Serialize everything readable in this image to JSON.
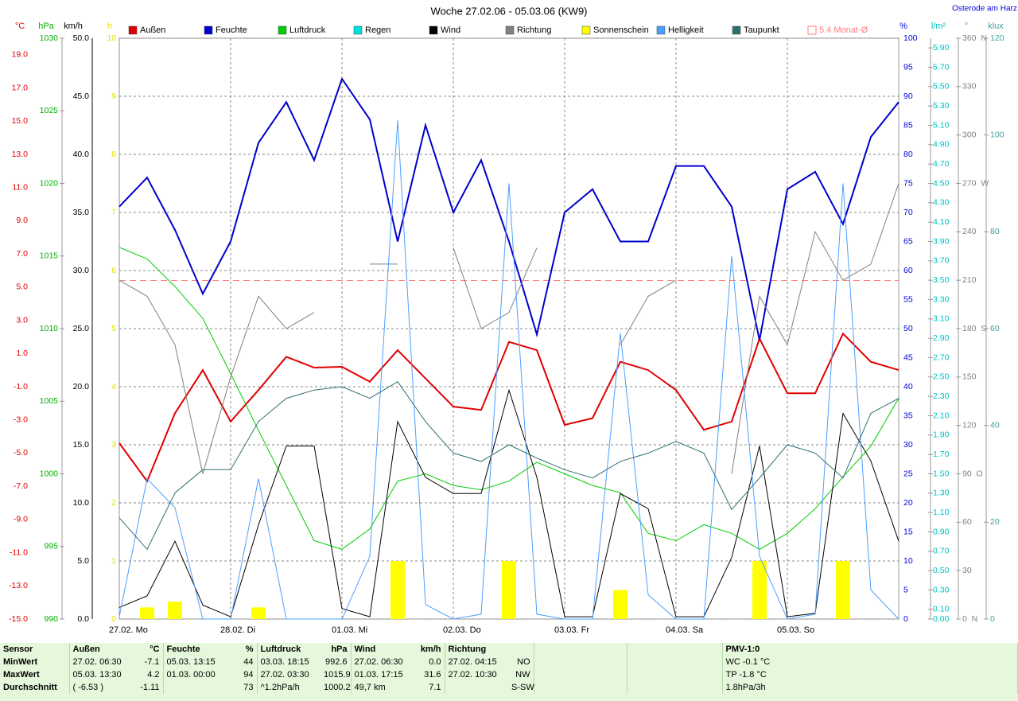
{
  "chart_data": {
    "type": "line",
    "title": "Woche 27.02.06 - 05.03.06 (KW9)",
    "location": "Osterode am Harz",
    "x": [
      0,
      6,
      12,
      18,
      24,
      30,
      36,
      42,
      48,
      54,
      60,
      66,
      72,
      78,
      84,
      90,
      96,
      102,
      108,
      114,
      120,
      126,
      132,
      138,
      144,
      150,
      156,
      162,
      168
    ],
    "xlim": [
      0,
      168
    ],
    "xticks": [
      {
        "value": 0,
        "label": "27.02. Mo"
      },
      {
        "value": 24,
        "label": "28.02. Di"
      },
      {
        "value": 48,
        "label": "01.03. Mi"
      },
      {
        "value": 72,
        "label": "02.03. Do"
      },
      {
        "value": 96,
        "label": "03.03. Fr"
      },
      {
        "value": 120,
        "label": "04.03. Sa"
      },
      {
        "value": 144,
        "label": "05.03. So"
      }
    ],
    "axes": [
      {
        "unit": "°C",
        "color": "#e00000",
        "lim": [
          -15,
          20
        ],
        "ticks": [
          {
            "value": -15,
            "label": "-15.0"
          },
          {
            "value": -13,
            "label": "-13.0"
          },
          {
            "value": -11,
            "label": "-11.0"
          },
          {
            "value": -9,
            "label": "-9.0"
          },
          {
            "value": -7,
            "label": "-7.0"
          },
          {
            "value": -5,
            "label": "-5.0"
          },
          {
            "value": -3,
            "label": "-3.0"
          },
          {
            "value": -1,
            "label": "-1.0"
          },
          {
            "value": 1,
            "label": "1.0"
          },
          {
            "value": 3,
            "label": "3.0"
          },
          {
            "value": 5,
            "label": "5.0"
          },
          {
            "value": 7,
            "label": "7.0"
          },
          {
            "value": 9,
            "label": "9.0"
          },
          {
            "value": 11,
            "label": "11.0"
          },
          {
            "value": 13,
            "label": "13.0"
          },
          {
            "value": 15,
            "label": "15.0"
          },
          {
            "value": 17,
            "label": "17.0"
          },
          {
            "value": 19,
            "label": "19.0"
          }
        ]
      },
      {
        "unit": "hPa",
        "color": "#00b000",
        "lim": [
          990,
          1030
        ],
        "ticks": [
          990,
          995,
          1000,
          1005,
          1010,
          1015,
          1020,
          1025,
          1030
        ]
      },
      {
        "unit": "km/h",
        "color": "#000000",
        "lim": [
          0,
          50
        ],
        "grid": true,
        "ticks": [
          {
            "value": 0,
            "label": "0.0"
          },
          {
            "value": 5,
            "label": "5.0"
          },
          {
            "value": 10,
            "label": "10.0"
          },
          {
            "value": 15,
            "label": "15.0"
          },
          {
            "value": 20,
            "label": "20.0"
          },
          {
            "value": 25,
            "label": "25.0"
          },
          {
            "value": 30,
            "label": "30.0"
          },
          {
            "value": 35,
            "label": "35.0"
          },
          {
            "value": 40,
            "label": "40.0"
          },
          {
            "value": 45,
            "label": "45.0"
          },
          {
            "value": 50,
            "label": "50.0"
          }
        ]
      },
      {
        "unit": "h",
        "color": "#e0e000",
        "lim": [
          0,
          10
        ],
        "ticks": [
          0,
          1,
          2,
          3,
          4,
          5,
          6,
          7,
          8,
          9,
          10
        ]
      },
      {
        "unit": "%",
        "color": "#0000e0",
        "lim": [
          0,
          100
        ],
        "ticks": [
          0,
          5,
          10,
          15,
          20,
          25,
          30,
          35,
          40,
          45,
          50,
          55,
          60,
          65,
          70,
          75,
          80,
          85,
          90,
          95,
          100
        ]
      },
      {
        "unit": "l/m²",
        "color": "#00c0c0",
        "lim": [
          0,
          6
        ],
        "ticks": [
          {
            "value": 0,
            "label": "0.00"
          },
          {
            "value": 0.1,
            "label": "0.10"
          },
          {
            "value": 0.3,
            "label": "0.30"
          },
          {
            "value": 0.5,
            "label": "0.50"
          },
          {
            "value": 0.7,
            "label": "0.70"
          },
          {
            "value": 0.9,
            "label": "0.90"
          },
          {
            "value": 1.1,
            "label": "1.10"
          },
          {
            "value": 1.3,
            "label": "1.30"
          },
          {
            "value": 1.5,
            "label": "1.50"
          },
          {
            "value": 1.7,
            "label": "1.70"
          },
          {
            "value": 1.9,
            "label": "1.90"
          },
          {
            "value": 2.1,
            "label": "2.10"
          },
          {
            "value": 2.3,
            "label": "2.30"
          },
          {
            "value": 2.5,
            "label": "2.50"
          },
          {
            "value": 2.7,
            "label": "2.70"
          },
          {
            "value": 2.9,
            "label": "2.90"
          },
          {
            "value": 3.1,
            "label": "3.10"
          },
          {
            "value": 3.3,
            "label": "3.30"
          },
          {
            "value": 3.5,
            "label": "3.50"
          },
          {
            "value": 3.7,
            "label": "3.70"
          },
          {
            "value": 3.9,
            "label": "3.90"
          },
          {
            "value": 4.1,
            "label": "4.10"
          },
          {
            "value": 4.3,
            "label": "4.30"
          },
          {
            "value": 4.5,
            "label": "4.50"
          },
          {
            "value": 4.7,
            "label": "4.70"
          },
          {
            "value": 4.9,
            "label": "4.90"
          },
          {
            "value": 5.1,
            "label": "5.10"
          },
          {
            "value": 5.3,
            "label": "5.30"
          },
          {
            "value": 5.5,
            "label": "5.50"
          },
          {
            "value": 5.7,
            "label": "5.70"
          },
          {
            "value": 5.9,
            "label": "5.90"
          }
        ]
      },
      {
        "unit": "°",
        "color": "#808080",
        "lim": [
          0,
          360
        ],
        "ticks": [
          {
            "value": 0,
            "label": "0  N"
          },
          30,
          60,
          {
            "value": 90,
            "label": "90  O"
          },
          120,
          150,
          {
            "value": 180,
            "label": "180  S"
          },
          210,
          240,
          {
            "value": 270,
            "label": "270  W"
          },
          300,
          330,
          {
            "value": 360,
            "label": "360  N"
          }
        ]
      },
      {
        "unit": "klux",
        "color": "#40a0a0",
        "lim": [
          0,
          120
        ],
        "ticks": [
          0,
          20,
          40,
          60,
          80,
          100,
          120
        ]
      }
    ],
    "series": [
      {
        "name": "Außen",
        "color": "#e00000",
        "type": "line",
        "axis": 0,
        "width": 2,
        "values": [
          -4.4,
          -6.7,
          -2.6,
          0.0,
          -3.1,
          -1.2,
          0.8,
          0.15,
          0.2,
          -0.7,
          1.2,
          -0.5,
          -2.2,
          -2.4,
          1.7,
          1.2,
          -3.3,
          -2.9,
          0.5,
          0.0,
          -1.2,
          -3.6,
          -3.1,
          1.9,
          -1.4,
          -1.4,
          2.2,
          0.5,
          0.0
        ]
      },
      {
        "name": "Feuchte",
        "color": "#0000cc",
        "type": "line",
        "axis": 4,
        "width": 2,
        "values": [
          71,
          76,
          67,
          56,
          65,
          82,
          89,
          79,
          93,
          86,
          65,
          85,
          70,
          79,
          65,
          49,
          70,
          74,
          65,
          65,
          78,
          78,
          71,
          48,
          74,
          77,
          68,
          83,
          89
        ]
      },
      {
        "name": "Luftdruck",
        "color": "#00cc00",
        "type": "line",
        "axis": 1,
        "width": 1,
        "values": [
          1015.6,
          1014.8,
          1012.9,
          1010.7,
          1006.9,
          1003.0,
          999.2,
          995.4,
          994.8,
          996.2,
          999.5,
          1000.0,
          999.2,
          998.9,
          999.5,
          1000.8,
          1000.0,
          999.2,
          998.7,
          995.9,
          995.4,
          996.5,
          995.9,
          994.8,
          995.9,
          997.6,
          999.8,
          1001.9,
          1005.2
        ]
      },
      {
        "name": "Regen",
        "color": "#00e0e0",
        "type": "bar",
        "axis": 5,
        "values": [
          0,
          0,
          0,
          0,
          0,
          0,
          0,
          0,
          0,
          0,
          0,
          0,
          0,
          0,
          0,
          0,
          0,
          0,
          0,
          0,
          0,
          0,
          0,
          0,
          0,
          0,
          0,
          0,
          0
        ]
      },
      {
        "name": "Wind",
        "color": "#000000",
        "type": "line",
        "axis": 2,
        "width": 1,
        "values": [
          1.0,
          2.0,
          6.7,
          1.2,
          0.2,
          8.1,
          14.9,
          14.9,
          0.9,
          0.2,
          17.0,
          12.2,
          10.8,
          10.8,
          19.7,
          12.2,
          0.2,
          0.2,
          10.8,
          9.5,
          0.2,
          0.2,
          5.3,
          14.9,
          0.2,
          0.5,
          17.7,
          13.6,
          6.7
        ]
      },
      {
        "name": "Richtung",
        "color": "#808080",
        "type": "line",
        "axis": 6,
        "width": 1,
        "values": [
          210,
          200,
          170,
          90,
          150,
          200,
          180,
          190,
          null,
          220,
          220,
          null,
          230,
          180,
          190,
          230,
          null,
          null,
          170,
          200,
          210,
          null,
          90,
          200,
          170,
          240,
          210,
          220,
          270
        ]
      },
      {
        "name": "Sonnenschein",
        "color": "#ffff00",
        "type": "bar",
        "axis": 3,
        "values": [
          0,
          0.2,
          0.3,
          0,
          0,
          0.2,
          0,
          0,
          0,
          0,
          1.0,
          0,
          0,
          0,
          1.0,
          0,
          0,
          0,
          0.5,
          0,
          0,
          0,
          0,
          1.0,
          0,
          0,
          1.0,
          0,
          0
        ]
      },
      {
        "name": "Helligkeit",
        "color": "#4aa0ff",
        "type": "line",
        "axis": 7,
        "width": 1,
        "values": [
          0.5,
          29,
          23,
          0,
          0,
          29,
          0,
          0,
          0,
          13,
          103,
          3,
          0,
          1,
          90,
          1,
          0,
          0,
          59,
          5,
          0,
          0,
          75,
          13,
          0,
          1,
          90,
          6,
          0
        ]
      },
      {
        "name": "Taupunkt",
        "color": "#2f6f6f",
        "type": "line",
        "axis": 0,
        "width": 1,
        "values": [
          -8.9,
          -10.8,
          -7.4,
          -6.0,
          -6.0,
          -3.1,
          -1.7,
          -1.2,
          -1.0,
          -1.7,
          -0.7,
          -3.1,
          -5.0,
          -5.5,
          -4.5,
          -5.3,
          -6.0,
          -6.5,
          -5.5,
          -5.0,
          -4.3,
          -5.0,
          -8.4,
          -6.5,
          -4.5,
          -5.0,
          -6.5,
          -2.6,
          -1.7
        ]
      }
    ],
    "reference": {
      "label": "5.4 Monat-Ø",
      "value": 5.4,
      "axis": 0,
      "color": "#ff8080"
    }
  },
  "table": {
    "rows": [
      [
        "Sensor",
        "Außen",
        "°C",
        "Feuchte",
        "%",
        "Luftdruck",
        "hPa",
        "Wind",
        "km/h",
        "Richtung",
        null,
        "PMV-1:0"
      ],
      [
        "MinWert",
        "27.02. 06:30",
        "-7.1",
        "05.03. 13:15",
        "44",
        "03.03. 18:15",
        "992.6",
        "27.02. 06:30",
        "0.0",
        "27.02. 04:15",
        "NO",
        "WC -0.1 °C"
      ],
      [
        "MaxWert",
        "05.03. 13:30",
        "4.2",
        "01.03. 00:00",
        "94",
        "27.02. 03:30",
        "1015.9",
        "01.03. 17:15",
        "31.6",
        "27.02. 10:30",
        "NW",
        "TP -1.8 °C"
      ],
      [
        "Durchschnitt",
        "( -6.53 )",
        "-1.11",
        null,
        "73",
        "^1.2hPa/h",
        "1000.2",
        "49,7 km",
        "7.1",
        null,
        "S-SW",
        "1.8hPa/3h"
      ]
    ]
  }
}
